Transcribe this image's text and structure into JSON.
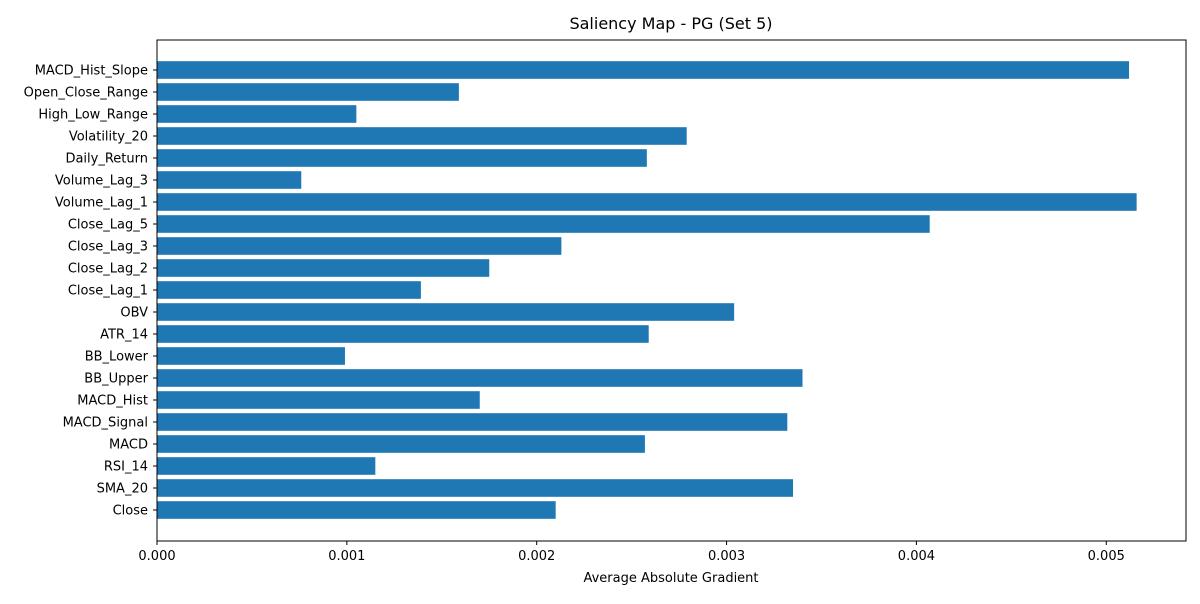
{
  "chart_data": {
    "type": "bar",
    "orientation": "horizontal",
    "title": "Saliency Map - PG (Set 5)",
    "xlabel": "Average Absolute Gradient",
    "ylabel": "",
    "xlim": [
      0,
      0.00542
    ],
    "xticks": [
      0.0,
      0.001,
      0.002,
      0.003,
      0.004,
      0.005
    ],
    "xtick_labels": [
      "0.000",
      "0.001",
      "0.002",
      "0.003",
      "0.004",
      "0.005"
    ],
    "grid": false,
    "bar_color": "#1f77b4",
    "categories": [
      "Close",
      "SMA_20",
      "RSI_14",
      "MACD",
      "MACD_Signal",
      "MACD_Hist",
      "BB_Upper",
      "BB_Lower",
      "ATR_14",
      "OBV",
      "Close_Lag_1",
      "Close_Lag_2",
      "Close_Lag_3",
      "Close_Lag_5",
      "Volume_Lag_1",
      "Volume_Lag_3",
      "Daily_Return",
      "Volatility_20",
      "High_Low_Range",
      "Open_Close_Range",
      "MACD_Hist_Slope"
    ],
    "values": [
      0.0021,
      0.00335,
      0.00115,
      0.00257,
      0.00332,
      0.0017,
      0.0034,
      0.00099,
      0.00259,
      0.00304,
      0.00139,
      0.00175,
      0.00213,
      0.00407,
      0.00516,
      0.00076,
      0.00258,
      0.00279,
      0.00105,
      0.00159,
      0.00512
    ]
  }
}
